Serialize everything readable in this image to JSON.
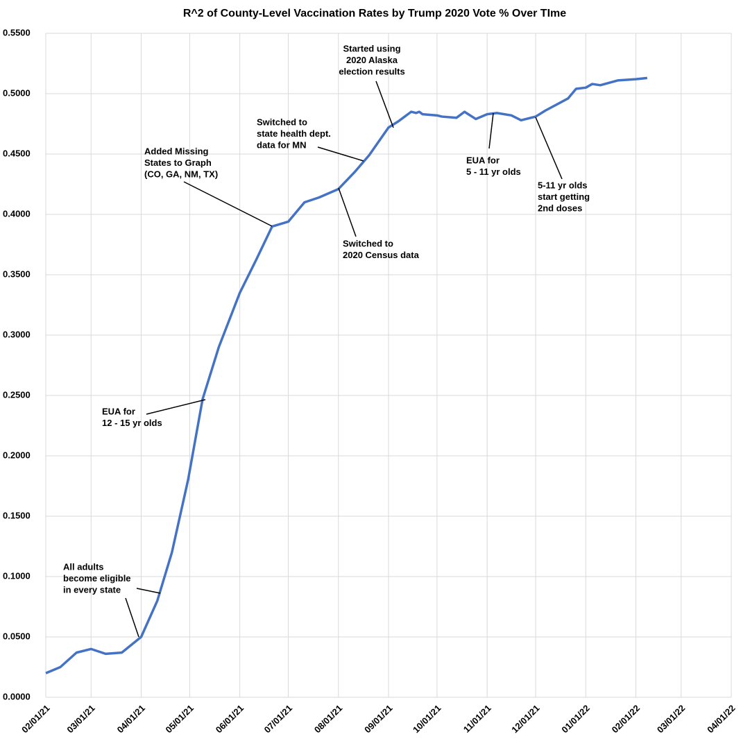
{
  "chart_data": {
    "type": "line",
    "title": "R^2 of County-Level Vaccination Rates by Trump 2020 Vote % Over TIme",
    "x": [
      "02/01/21",
      "02/10/21",
      "02/20/21",
      "03/01/21",
      "03/10/21",
      "03/20/21",
      "04/01/21",
      "04/11/21",
      "04/20/21",
      "04/30/21",
      "05/09/21",
      "05/19/21",
      "06/01/21",
      "06/11/21",
      "06/21/21",
      "07/01/21",
      "07/11/21",
      "07/20/21",
      "08/01/21",
      "08/11/21",
      "08/20/21",
      "09/01/21",
      "09/07/21",
      "09/11/21",
      "09/14/21",
      "09/15/21",
      "09/18/21",
      "09/20/21",
      "09/22/21",
      "10/01/21",
      "10/04/21",
      "10/13/21",
      "10/18/21",
      "10/25/21",
      "11/01/21",
      "11/07/21",
      "11/16/21",
      "11/22/21",
      "12/01/21",
      "12/07/21",
      "12/21/21",
      "12/26/21",
      "01/01/22",
      "01/05/22",
      "01/10/22",
      "01/21/22",
      "02/01/22",
      "02/08/22"
    ],
    "series": [
      {
        "name": "R^2",
        "color": "#4472c4",
        "values": [
          0.02,
          0.025,
          0.037,
          0.04,
          0.036,
          0.037,
          0.05,
          0.08,
          0.12,
          0.18,
          0.247,
          0.29,
          0.335,
          0.362,
          0.39,
          0.394,
          0.41,
          0.414,
          0.421,
          0.435,
          0.449,
          0.472,
          0.477,
          0.481,
          0.484,
          0.485,
          0.484,
          0.485,
          0.483,
          0.482,
          0.481,
          0.48,
          0.485,
          0.479,
          0.483,
          0.484,
          0.482,
          0.478,
          0.481,
          0.486,
          0.496,
          0.504,
          0.505,
          0.508,
          0.507,
          0.511,
          0.512,
          0.513
        ]
      }
    ],
    "xlim": [
      "02/01/21",
      "04/01/22"
    ],
    "xticks": [
      "02/01/21",
      "03/01/21",
      "04/01/21",
      "05/01/21",
      "06/01/21",
      "07/01/21",
      "08/01/21",
      "09/01/21",
      "10/01/21",
      "11/01/21",
      "12/01/21",
      "01/01/22",
      "02/01/22",
      "03/01/22",
      "04/01/22"
    ],
    "ylim": [
      0,
      0.55
    ],
    "yticks": [
      {
        "value": 0,
        "label": "0.0000"
      },
      {
        "value": 0.05,
        "label": "0.0500"
      },
      {
        "value": 0.1,
        "label": "0.1000"
      },
      {
        "value": 0.15,
        "label": "0.1500"
      },
      {
        "value": 0.2,
        "label": "0.2000"
      },
      {
        "value": 0.25,
        "label": "0.2500"
      },
      {
        "value": 0.3,
        "label": "0.3000"
      },
      {
        "value": 0.35,
        "label": "0.3500"
      },
      {
        "value": 0.4,
        "label": "0.4000"
      },
      {
        "value": 0.45,
        "label": "0.4500"
      },
      {
        "value": 0.5,
        "label": "0.5000"
      },
      {
        "value": 0.55,
        "label": "0.5500"
      }
    ],
    "grid": true,
    "annotations": [
      {
        "lines": [
          "All adults",
          "become eligible",
          "in every state"
        ]
      },
      {
        "lines": [
          "EUA for",
          "12 - 15 yr olds"
        ]
      },
      {
        "lines": [
          "Added Missing",
          "States to Graph",
          "(CO, GA, NM, TX)"
        ]
      },
      {
        "lines": [
          "Switched to",
          "state health dept.",
          "data for MN"
        ]
      },
      {
        "lines": [
          "Started using",
          "2020 Alaska",
          "election results"
        ]
      },
      {
        "lines": [
          "Switched to",
          "2020 Census data"
        ]
      },
      {
        "lines": [
          "EUA for",
          "5 - 11 yr olds"
        ]
      },
      {
        "lines": [
          "5-11 yr olds",
          "start getting",
          "2nd doses"
        ]
      }
    ]
  }
}
